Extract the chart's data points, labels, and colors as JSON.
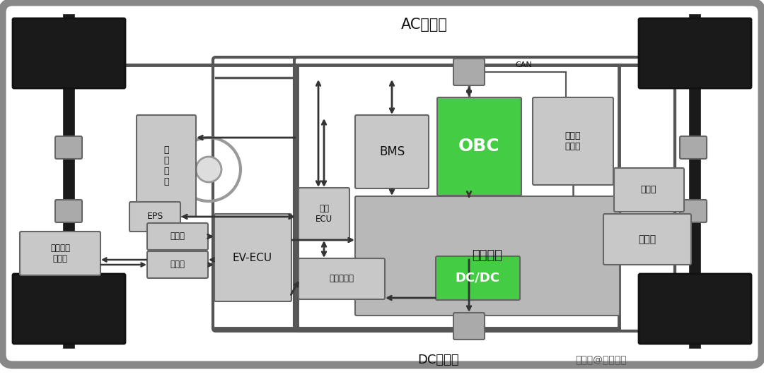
{
  "title_top": "AC充电口",
  "title_bottom_left": "DC充电口",
  "title_bottom_right": "搜狐号@拍明芯城",
  "bg_color": "#ffffff",
  "car_outline_color": "#888888",
  "wheel_color": "#1a1a1a",
  "axle_color": "#1a1a1a",
  "box_gray": "#c8c8c8",
  "box_green": "#44cc44",
  "box_battery": "#b8b8b8",
  "text_color": "#111111",
  "line_color": "#555555",
  "line_width": 2.5,
  "arrow_color": "#333333"
}
